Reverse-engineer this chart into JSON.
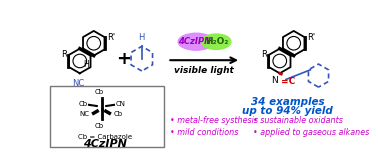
{
  "bg_color": "#ffffff",
  "title_color": "#0055cc",
  "bullet_color": "#cc00cc",
  "title_text1": "34 examples",
  "title_text2": "up to 94% yield",
  "bullet1": "• metal-free systhesis",
  "bullet2": "• mild conditions",
  "bullet3": "• sustainable oxidants",
  "bullet4": "• applied to gaseous alkanes",
  "photocatalyst_color": "#dd88ff",
  "oxidant_color": "#88ee44",
  "photocatalyst_text": "4CzIPN",
  "oxidant_text": "H₂O₂",
  "visible_light_text": "visible light",
  "red_bond_color": "#cc0000",
  "blue_color": "#3355bb",
  "box_color": "#777777",
  "4czipn_label": "4CzIPN",
  "cb_label": "Cb = Carbazole",
  "nc_color": "#3355bb"
}
